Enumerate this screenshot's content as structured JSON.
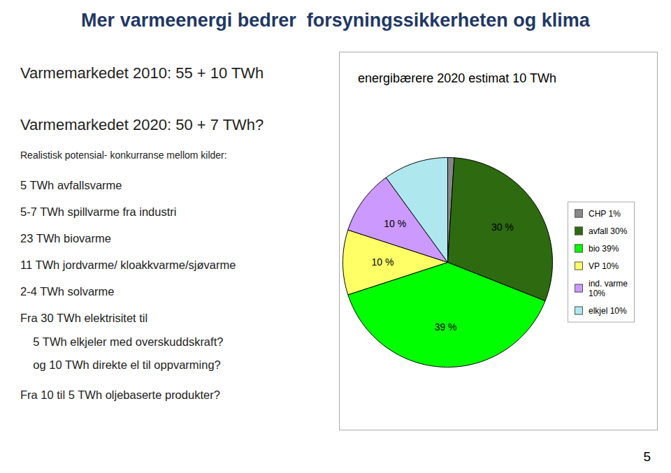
{
  "chart_data": {
    "type": "pie",
    "title": "Mer varmeenergi bedrer  forsyningssikkerheten og klima",
    "subtitle": "energibærere 2020 estimat 10 TWh",
    "annotations": [
      "Varmemarkedet 2010: 55 + 10 TWh",
      "Varmemarkedet 2020: 50 + 7 TWh?",
      "Realistisk potensial- konkurranse mellom kilder:",
      "5 TWh avfallsvarme",
      "5-7 TWh spillvarme fra industri",
      "23 TWh biovarme",
      "11 TWh jordvarme/ kloakkvarme/sjøvarme",
      "2-4 TWh solvarme",
      "Fra 30 TWh elektrisitet til",
      "    5 TWh elkjeler med overskuddskraft?",
      "    og 10 TWh direkte el til oppvarming?",
      "Fra 10 til 5 TWh oljebaserte produkter?"
    ],
    "caption": "5",
    "categories": [
      "CHP 1%",
      "avfall 30%",
      "bio 39%",
      "VP 10%",
      "ind. varme\n10%",
      "elkjel 10%"
    ],
    "values": [
      1,
      30,
      39,
      10,
      10,
      10
    ],
    "value_labels": [
      null,
      "30 %",
      "39 %",
      "10 %",
      "10 %",
      null
    ],
    "colors": [
      "#888888",
      "#2d6a10",
      "#00ff00",
      "#ffff66",
      "#cc99ff",
      "#aee8ee"
    ],
    "data_labels": true,
    "legend": "right"
  }
}
